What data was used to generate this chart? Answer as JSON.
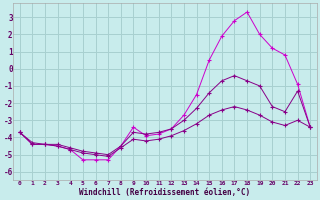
{
  "xlabel": "Windchill (Refroidissement éolien,°C)",
  "bg_color": "#c8ecec",
  "grid_color": "#a8d0d0",
  "line_color": "#cc00cc",
  "line_color2": "#880088",
  "xlim_min": -0.5,
  "xlim_max": 23.5,
  "ylim_min": -6.5,
  "ylim_max": 3.8,
  "xticks": [
    0,
    1,
    2,
    3,
    4,
    5,
    6,
    7,
    8,
    9,
    10,
    11,
    12,
    13,
    14,
    15,
    16,
    17,
    18,
    19,
    20,
    21,
    22,
    23
  ],
  "yticks": [
    -6,
    -5,
    -4,
    -3,
    -2,
    -1,
    0,
    1,
    2,
    3
  ],
  "series1_y": [
    -3.7,
    -4.4,
    -4.4,
    -4.5,
    -4.7,
    -5.3,
    -5.3,
    -5.3,
    -4.5,
    -3.4,
    -3.9,
    -3.8,
    -3.5,
    -2.7,
    -1.5,
    0.5,
    1.9,
    2.8,
    3.3,
    2.0,
    1.2,
    0.8,
    -0.9,
    -3.4
  ],
  "series2_y": [
    -3.7,
    -4.3,
    -4.4,
    -4.4,
    -4.6,
    -4.8,
    -4.9,
    -5.0,
    -4.5,
    -3.7,
    -3.8,
    -3.7,
    -3.5,
    -3.0,
    -2.3,
    -1.4,
    -0.7,
    -0.4,
    -0.7,
    -1.0,
    -2.2,
    -2.5,
    -1.3,
    -3.4
  ],
  "series3_y": [
    -3.7,
    -4.4,
    -4.4,
    -4.5,
    -4.7,
    -4.9,
    -5.0,
    -5.1,
    -4.6,
    -4.1,
    -4.2,
    -4.1,
    -3.9,
    -3.6,
    -3.2,
    -2.7,
    -2.4,
    -2.2,
    -2.4,
    -2.7,
    -3.1,
    -3.3,
    -3.0,
    -3.4
  ]
}
